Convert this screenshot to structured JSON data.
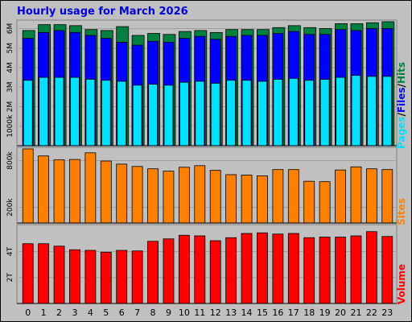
{
  "title": "Hourly usage for March 2026",
  "colors": {
    "hits": "#008040",
    "files": "#0000ff",
    "pages": "#00e0ff",
    "sites": "#ff8000",
    "volume": "#ff0000",
    "title": "#0000d8",
    "background": "#c0c0c0",
    "plot_bg": "#ffffff",
    "grid": "#a0a0a0"
  },
  "side_labels": {
    "pages": "Pages",
    "files": "Files",
    "hits": "Hits",
    "sep": "/",
    "sites": "Sites",
    "volume": "Volume"
  },
  "chart_data": [
    {
      "type": "bar",
      "name": "hits-files-pages",
      "categories": [
        "0",
        "1",
        "2",
        "3",
        "4",
        "5",
        "6",
        "7",
        "8",
        "9",
        "10",
        "11",
        "12",
        "13",
        "14",
        "15",
        "16",
        "17",
        "18",
        "19",
        "20",
        "21",
        "22",
        "23"
      ],
      "series": [
        {
          "name": "Hits",
          "values": [
            5900000,
            6200000,
            6200000,
            6150000,
            5950000,
            5900000,
            6100000,
            5650000,
            5750000,
            5700000,
            5850000,
            5900000,
            5800000,
            5950000,
            5950000,
            5950000,
            6050000,
            6150000,
            6050000,
            6000000,
            6250000,
            6250000,
            6300000,
            6350000
          ]
        },
        {
          "name": "Files",
          "values": [
            5500000,
            5800000,
            5900000,
            5800000,
            5650000,
            5500000,
            5300000,
            5150000,
            5350000,
            5300000,
            5500000,
            5600000,
            5450000,
            5600000,
            5650000,
            5650000,
            5750000,
            5850000,
            5700000,
            5700000,
            5950000,
            5900000,
            6000000,
            6000000
          ]
        },
        {
          "name": "Pages",
          "values": [
            3350000,
            3500000,
            3500000,
            3500000,
            3400000,
            3350000,
            3300000,
            3100000,
            3150000,
            3100000,
            3250000,
            3300000,
            3200000,
            3350000,
            3350000,
            3300000,
            3400000,
            3450000,
            3350000,
            3400000,
            3500000,
            3600000,
            3550000,
            3550000
          ]
        }
      ],
      "ytick_labels": [
        "1000k",
        "2M",
        "3M",
        "4M",
        "5M",
        "6M"
      ],
      "yticks": [
        1000000,
        2000000,
        3000000,
        4000000,
        5000000,
        6000000
      ],
      "ylim": [
        0,
        6350000
      ]
    },
    {
      "type": "bar",
      "name": "sites",
      "categories": [
        "0",
        "1",
        "2",
        "3",
        "4",
        "5",
        "6",
        "7",
        "8",
        "9",
        "10",
        "11",
        "12",
        "13",
        "14",
        "15",
        "16",
        "17",
        "18",
        "19",
        "20",
        "21",
        "22",
        "23"
      ],
      "series": [
        {
          "name": "Sites",
          "values": [
            950,
            860,
            810,
            815,
            900,
            795,
            755,
            725,
            695,
            665,
            715,
            735,
            675,
            620,
            615,
            605,
            685,
            685,
            535,
            530,
            680,
            720,
            695,
            685
          ]
        }
      ],
      "ytick_labels": [
        "200k",
        "800k"
      ],
      "yticks": [
        200,
        800
      ],
      "ylim": [
        0,
        950
      ]
    },
    {
      "type": "bar",
      "name": "volume",
      "categories": [
        "0",
        "1",
        "2",
        "3",
        "4",
        "5",
        "6",
        "7",
        "8",
        "9",
        "10",
        "11",
        "12",
        "13",
        "14",
        "15",
        "16",
        "17",
        "18",
        "19",
        "20",
        "21",
        "22",
        "23"
      ],
      "series": [
        {
          "name": "Volume",
          "values": [
            4.95,
            4.95,
            4.75,
            4.45,
            4.4,
            4.25,
            4.4,
            4.35,
            5.15,
            5.35,
            5.65,
            5.6,
            5.2,
            5.45,
            5.8,
            5.85,
            5.75,
            5.8,
            5.45,
            5.5,
            5.5,
            5.6,
            5.95,
            5.55
          ]
        }
      ],
      "ytick_labels": [
        "2T",
        "4T"
      ],
      "yticks": [
        2.15,
        4.3
      ],
      "ylim": [
        0,
        6.4
      ]
    }
  ]
}
